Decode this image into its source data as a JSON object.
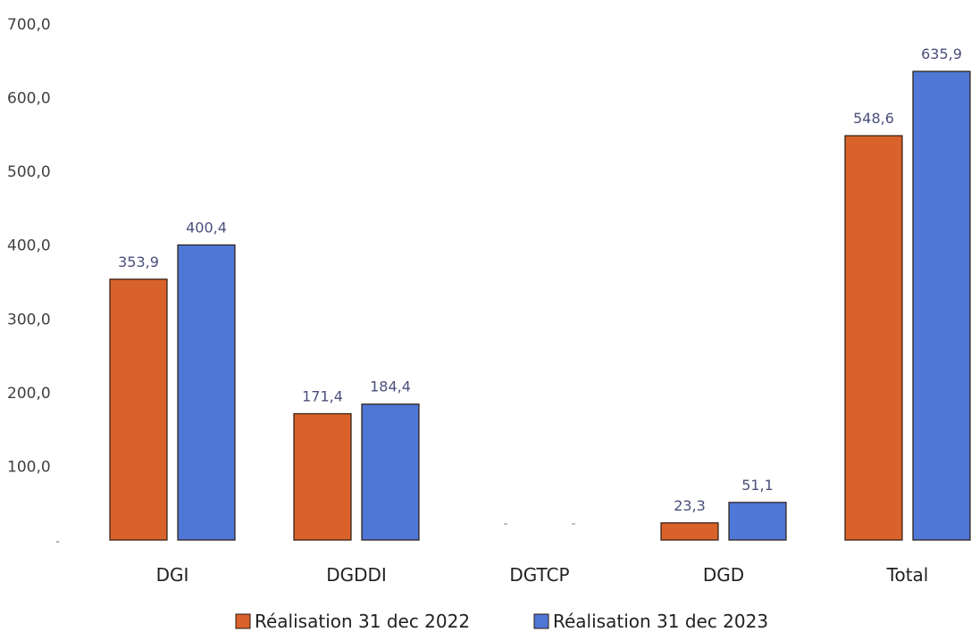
{
  "chart_data": {
    "type": "bar",
    "categories": [
      "DGI",
      "DGDDI",
      "DGTCP",
      "DGD",
      "Total"
    ],
    "series": [
      {
        "name": "Réalisation 31 dec 2022",
        "color": "#d9622b",
        "values": [
          353.9,
          171.4,
          0,
          23.3,
          548.6
        ],
        "labels": [
          "353,9",
          "171,4",
          "-",
          "23,3",
          "548,6"
        ]
      },
      {
        "name": "Réalisation 31 dec 2023",
        "color": "#4f77d6",
        "values": [
          400.4,
          184.4,
          0,
          51.1,
          635.9
        ],
        "labels": [
          "400,4",
          "184,4",
          "-",
          "51,1",
          "635,9"
        ]
      }
    ],
    "ylim": [
      0,
      700
    ],
    "yticks": [
      0,
      100,
      200,
      300,
      400,
      500,
      600,
      700
    ],
    "ytick_labels": [
      "-",
      "100,0",
      "200,0",
      "300,0",
      "400,0",
      "500,0",
      "600,0",
      "700,0"
    ],
    "grid": false,
    "legend_position": "bottom",
    "title": "",
    "xlabel": "",
    "ylabel": ""
  }
}
